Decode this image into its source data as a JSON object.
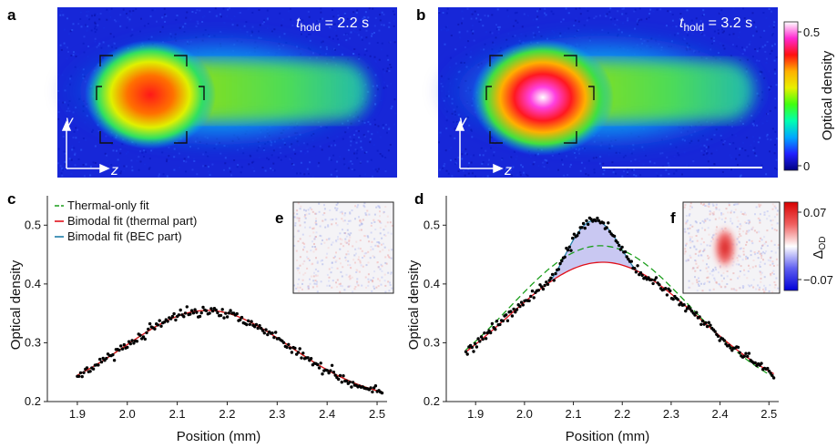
{
  "figure": {
    "panel_labels": {
      "a": "a",
      "b": "b",
      "c": "c",
      "d": "d",
      "e": "e",
      "f": "f"
    },
    "images": {
      "a": {
        "t_symbol": "t",
        "t_subscript": "hold",
        "t_value": " = 2.2 s"
      },
      "b": {
        "t_symbol": "t",
        "t_subscript": "hold",
        "t_value": " = 3.2 s"
      },
      "axis_y": "y",
      "axis_z": "z"
    },
    "colorbar_od": {
      "label": "Optical density",
      "ticks": [
        "0.5",
        "0"
      ],
      "colors": [
        "#ffffff",
        "#ff28d0",
        "#ff1010",
        "#ffb000",
        "#e8f000",
        "#40ff10",
        "#00ffb0",
        "#00a8ff",
        "#2020ff",
        "#000080"
      ]
    },
    "colorbar_delta": {
      "label_main": "Δ",
      "label_sub": "OD",
      "ticks": [
        "0.07",
        "−0.07"
      ],
      "colors": [
        "#d80000",
        "#f06060",
        "#ffffff",
        "#6060f0",
        "#0000d8"
      ]
    }
  },
  "chart_data": [
    {
      "type": "scatter",
      "panel": "c",
      "xlabel": "Position (mm)",
      "ylabel": "Optical density",
      "xlim": [
        1.84,
        2.52
      ],
      "ylim": [
        0.2,
        0.55
      ],
      "xticks": [
        "1.9",
        "2.0",
        "2.1",
        "2.2",
        "2.3",
        "2.4",
        "2.5"
      ],
      "yticks": [
        "0.2",
        "0.3",
        "0.4",
        "0.5"
      ],
      "legend": [
        "Thermal-only fit",
        "Bimodal fit (thermal part)",
        "Bimodal fit (BEC part)"
      ],
      "legend_colors": [
        "#1a9e1a",
        "#e0101a",
        "#1f7fa8"
      ],
      "series": [
        {
          "name": "Thermal-only fit",
          "type": "dashed",
          "color": "#1a9e1a",
          "model": {
            "amp": 0.155,
            "center": 2.16,
            "sigma": 0.165,
            "offset": 0.2
          }
        },
        {
          "name": "Bimodal fit (thermal part)",
          "type": "line",
          "color": "#e0101a",
          "model": {
            "amp": 0.155,
            "center": 2.16,
            "sigma": 0.165,
            "offset": 0.2
          }
        }
      ],
      "data_points": {
        "x_start": 1.9,
        "x_end": 2.51,
        "count": 190,
        "noise": 0.007,
        "model": {
          "amp": 0.155,
          "center": 2.16,
          "sigma": 0.165,
          "offset": 0.2
        }
      }
    },
    {
      "type": "scatter",
      "panel": "d",
      "xlabel": "Position (mm)",
      "ylabel": "Optical density",
      "xlim": [
        1.84,
        2.52
      ],
      "ylim": [
        0.2,
        0.55
      ],
      "xticks": [
        "1.9",
        "2.0",
        "2.1",
        "2.2",
        "2.3",
        "2.4",
        "2.5"
      ],
      "yticks": [
        "0.2",
        "0.3",
        "0.4",
        "0.5"
      ],
      "series": [
        {
          "name": "Thermal-only fit",
          "type": "dashed",
          "color": "#1a9e1a",
          "model": {
            "amp": 0.265,
            "center": 2.155,
            "sigma": 0.185,
            "offset": 0.2
          }
        },
        {
          "name": "Bimodal fit (thermal part)",
          "type": "line",
          "color": "#e0101a",
          "model": {
            "amp": 0.237,
            "center": 2.16,
            "sigma": 0.195,
            "offset": 0.2
          }
        },
        {
          "name": "Bimodal fit (BEC part)",
          "type": "filled",
          "color": "#1f7fa8",
          "fill": "#c9c8f2",
          "model": {
            "amp": 0.072,
            "center": 2.14,
            "halfwidth": 0.095
          }
        }
      ],
      "data_points": {
        "x_start": 1.88,
        "x_end": 2.51,
        "count": 200,
        "noise": 0.007
      }
    }
  ]
}
